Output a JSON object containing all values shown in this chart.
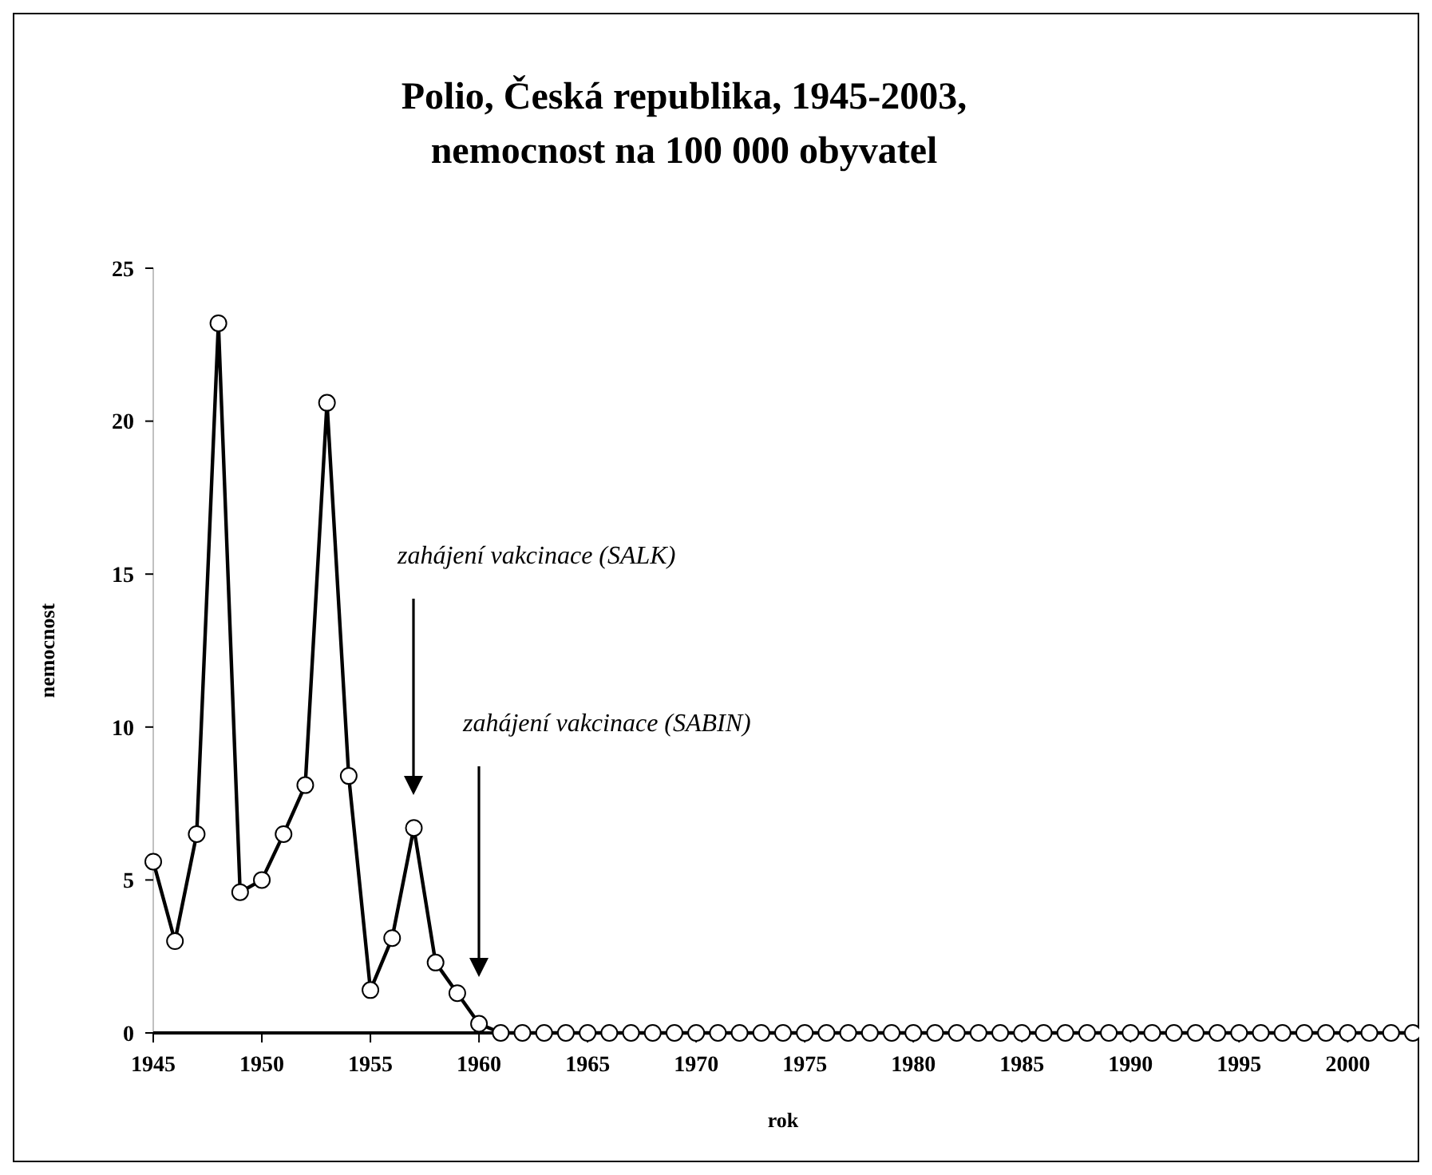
{
  "chart_data": {
    "type": "line",
    "title": "Polio, Česká republika, 1945-2003,\nnemocnost na 100 000 obyvatel",
    "xlabel": "rok",
    "ylabel": "nemocnost",
    "x": [
      1945,
      1946,
      1947,
      1948,
      1949,
      1950,
      1951,
      1952,
      1953,
      1954,
      1955,
      1956,
      1957,
      1958,
      1959,
      1960,
      1961,
      1962,
      1963,
      1964,
      1965,
      1966,
      1967,
      1968,
      1969,
      1970,
      1971,
      1972,
      1973,
      1974,
      1975,
      1976,
      1977,
      1978,
      1979,
      1980,
      1981,
      1982,
      1983,
      1984,
      1985,
      1986,
      1987,
      1988,
      1989,
      1990,
      1991,
      1992,
      1993,
      1994,
      1995,
      1996,
      1997,
      1998,
      1999,
      2000,
      2001,
      2002,
      2003
    ],
    "series": [
      {
        "color": "#000000",
        "values": [
          5.6,
          3.0,
          6.5,
          23.2,
          4.6,
          5.0,
          6.5,
          8.1,
          20.6,
          8.4,
          1.4,
          3.1,
          6.7,
          2.3,
          1.3,
          0.3,
          0,
          0,
          0,
          0,
          0,
          0,
          0,
          0,
          0,
          0,
          0,
          0,
          0,
          0,
          0,
          0,
          0,
          0,
          0,
          0,
          0,
          0,
          0,
          0,
          0,
          0,
          0,
          0,
          0,
          0,
          0,
          0,
          0,
          0,
          0,
          0,
          0,
          0,
          0,
          0,
          0,
          0,
          0
        ]
      }
    ],
    "xlim": [
      1945,
      2003
    ],
    "xticks": [
      1945,
      1950,
      1955,
      1960,
      1965,
      1970,
      1975,
      1980,
      1985,
      1990,
      1995,
      2000
    ],
    "ylim": [
      0,
      25
    ],
    "yticks": [
      0,
      5,
      10,
      15,
      20,
      25
    ],
    "grid": false,
    "marker": "circle",
    "line_style": "solid",
    "annotations": [
      "zahájení vakcinace (SALK)",
      "zahájení vakcinace (SABIN)"
    ]
  }
}
